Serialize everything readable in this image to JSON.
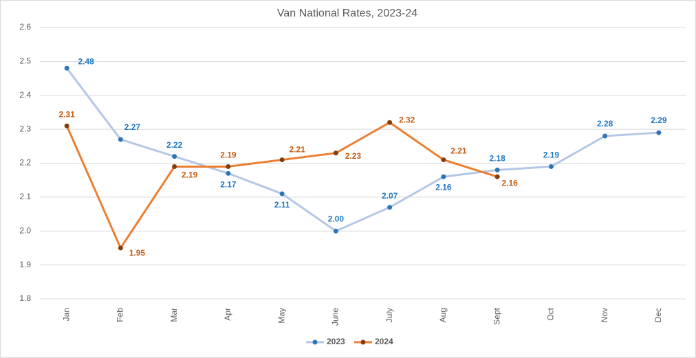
{
  "chart_data": {
    "type": "line",
    "title": "Van National Rates, 2023-24",
    "categories": [
      "Jan",
      "Feb",
      "Mar",
      "Apr",
      "May",
      "June",
      "July",
      "Aug",
      "Sept",
      "Oct",
      "Nov",
      "Dec"
    ],
    "series": [
      {
        "name": "2023",
        "color": "#b4c7e7",
        "marker_color": "#2e75b6",
        "label_color": "#1f77c4",
        "values": [
          2.48,
          2.27,
          2.22,
          2.17,
          2.11,
          2.0,
          2.07,
          2.16,
          2.18,
          2.19,
          2.28,
          2.29
        ],
        "value_labels": [
          "2.48",
          "2.27",
          "2.22",
          "2.17",
          "2.11",
          "2.00",
          "2.07",
          "2.16",
          "2.18",
          "2.19",
          "2.28",
          "2.29"
        ]
      },
      {
        "name": "2024",
        "color": "#ed7d31",
        "marker_color": "#843c0c",
        "label_color": "#c55a11",
        "values": [
          2.31,
          1.95,
          2.19,
          2.19,
          2.21,
          2.23,
          2.32,
          2.21,
          2.16,
          null,
          null,
          null
        ],
        "value_labels": [
          "2.31",
          "1.95",
          "2.19",
          "2.19",
          "2.21",
          "2.23",
          "2.32",
          "2.21",
          "2.16",
          null,
          null,
          null
        ]
      }
    ],
    "ylim": [
      1.8,
      2.6
    ],
    "yticks": [
      {
        "value": 1.8,
        "label": "1.8"
      },
      1.9,
      {
        "value": 2,
        "label": "2.0"
      },
      2.1,
      2.2,
      2.3,
      2.4,
      2.5,
      2.6
    ],
    "grid": true,
    "legend": "bottom"
  }
}
